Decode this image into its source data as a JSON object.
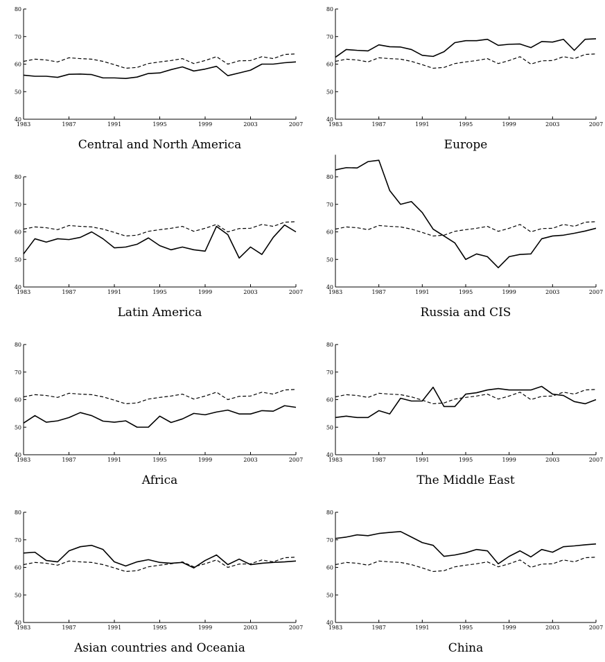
{
  "chart_data": [
    {
      "type": "line",
      "title": "Central and North America",
      "x": [
        1983,
        1984,
        1985,
        1986,
        1987,
        1988,
        1989,
        1990,
        1991,
        1992,
        1993,
        1994,
        1995,
        1996,
        1997,
        1998,
        1999,
        2000,
        2001,
        2002,
        2003,
        2004,
        2005,
        2006,
        2007
      ],
      "series": [
        {
          "color": "#000000",
          "dash": "solid",
          "values": [
            56,
            55.6,
            55.6,
            55.2,
            56.3,
            56.4,
            56.2,
            55,
            55,
            54.8,
            55.3,
            56.6,
            56.8,
            58,
            59,
            57.5,
            58.2,
            59.2,
            55.8,
            56.8,
            57.8,
            60,
            60,
            60.5,
            60.8
          ]
        },
        {
          "color": "#000000",
          "dash": "dashed",
          "values": [
            61,
            61.8,
            61.5,
            60.8,
            62.3,
            62,
            61.8,
            61,
            59.8,
            58.5,
            58.8,
            60.2,
            60.8,
            61.3,
            62,
            60.2,
            61.3,
            62.7,
            60,
            61.2,
            61.3,
            62.7,
            62,
            63.5,
            63.7
          ]
        }
      ],
      "xlim": [
        1983,
        2007
      ],
      "xticks": [
        1983,
        1987,
        1991,
        1995,
        1999,
        2003,
        2007
      ],
      "ylim": [
        40,
        80
      ],
      "yticks": [
        40,
        50,
        60,
        70,
        80
      ]
    },
    {
      "type": "line",
      "title": "Europe",
      "x": [
        1983,
        1984,
        1985,
        1986,
        1987,
        1988,
        1989,
        1990,
        1991,
        1992,
        1993,
        1994,
        1995,
        1996,
        1997,
        1998,
        1999,
        2000,
        2001,
        2002,
        2003,
        2004,
        2005,
        2006,
        2007
      ],
      "series": [
        {
          "color": "#000000",
          "dash": "solid",
          "values": [
            62.5,
            65.3,
            65,
            64.8,
            67,
            66.3,
            66.2,
            65.3,
            63.2,
            62.8,
            64.5,
            67.8,
            68.5,
            68.5,
            69,
            66.8,
            67.2,
            67.3,
            66,
            68.2,
            68,
            69,
            65,
            69,
            69.2
          ]
        },
        {
          "color": "#000000",
          "dash": "dashed",
          "values": [
            61,
            61.8,
            61.5,
            60.8,
            62.3,
            62,
            61.8,
            61,
            59.8,
            58.5,
            58.8,
            60.2,
            60.8,
            61.3,
            62,
            60.2,
            61.3,
            62.7,
            60,
            61.2,
            61.3,
            62.7,
            62,
            63.5,
            63.7
          ]
        }
      ],
      "xlim": [
        1983,
        2007
      ],
      "xticks": [
        1983,
        1987,
        1991,
        1995,
        1999,
        2003,
        2007
      ],
      "ylim": [
        40,
        80
      ],
      "yticks": [
        40,
        50,
        60,
        70,
        80
      ]
    },
    {
      "type": "line",
      "title": "Latin America",
      "x": [
        1983,
        1984,
        1985,
        1986,
        1987,
        1988,
        1989,
        1990,
        1991,
        1992,
        1993,
        1994,
        1995,
        1996,
        1997,
        1998,
        1999,
        2000,
        2001,
        2002,
        2003,
        2004,
        2005,
        2006,
        2007
      ],
      "series": [
        {
          "color": "#000000",
          "dash": "solid",
          "values": [
            52,
            57.5,
            56.3,
            57.5,
            57.2,
            58,
            60,
            57.5,
            54.2,
            54.5,
            55.5,
            57.8,
            55,
            53.5,
            54.5,
            53.5,
            53,
            62,
            59,
            50.5,
            54.5,
            51.8,
            58,
            62.5,
            60
          ]
        },
        {
          "color": "#000000",
          "dash": "dashed",
          "values": [
            61,
            61.8,
            61.5,
            60.8,
            62.3,
            62,
            61.8,
            61,
            59.8,
            58.5,
            58.8,
            60.2,
            60.8,
            61.3,
            62,
            60.2,
            61.3,
            62.7,
            60,
            61.2,
            61.3,
            62.7,
            62,
            63.5,
            63.7
          ]
        }
      ],
      "xlim": [
        1983,
        2007
      ],
      "xticks": [
        1983,
        1987,
        1991,
        1995,
        1999,
        2003,
        2007
      ],
      "ylim": [
        40,
        80
      ],
      "yticks": [
        40,
        50,
        60,
        70,
        80
      ]
    },
    {
      "type": "line",
      "title": "Russia and CIS",
      "x": [
        1983,
        1984,
        1985,
        1986,
        1987,
        1988,
        1989,
        1990,
        1991,
        1992,
        1993,
        1994,
        1995,
        1996,
        1997,
        1998,
        1999,
        2000,
        2001,
        2002,
        2003,
        2004,
        2005,
        2006,
        2007
      ],
      "series": [
        {
          "color": "#000000",
          "dash": "solid",
          "values": [
            82.5,
            83.3,
            83.2,
            85.5,
            86,
            75,
            70,
            71,
            67,
            61,
            58.5,
            56,
            50,
            52,
            51,
            47,
            51,
            51.8,
            52,
            57.5,
            58.5,
            58.8,
            59.5,
            60.3,
            61.3
          ]
        },
        {
          "color": "#000000",
          "dash": "dashed",
          "values": [
            61,
            61.8,
            61.5,
            60.8,
            62.3,
            62,
            61.8,
            61,
            59.8,
            58.5,
            58.8,
            60.2,
            60.8,
            61.3,
            62,
            60.2,
            61.3,
            62.7,
            60,
            61.2,
            61.3,
            62.7,
            62,
            63.5,
            63.7
          ]
        }
      ],
      "xlim": [
        1983,
        2007
      ],
      "xticks": [
        1983,
        1987,
        1991,
        1995,
        1999,
        2003,
        2007
      ],
      "ylim": [
        40,
        88
      ],
      "yticks": [
        40,
        50,
        60,
        70,
        80
      ]
    },
    {
      "type": "line",
      "title": "Africa",
      "x": [
        1983,
        1984,
        1985,
        1986,
        1987,
        1988,
        1989,
        1990,
        1991,
        1992,
        1993,
        1994,
        1995,
        1996,
        1997,
        1998,
        1999,
        2000,
        2001,
        2002,
        2003,
        2004,
        2005,
        2006,
        2007
      ],
      "series": [
        {
          "color": "#000000",
          "dash": "solid",
          "values": [
            51.5,
            54.2,
            51.8,
            52.3,
            53.5,
            55.3,
            54.2,
            52.2,
            51.8,
            52.3,
            50,
            50,
            54,
            51.7,
            53,
            55,
            54.5,
            55.5,
            56.2,
            54.8,
            54.8,
            56,
            55.8,
            57.8,
            57.2
          ]
        },
        {
          "color": "#000000",
          "dash": "dashed",
          "values": [
            61,
            61.8,
            61.5,
            60.8,
            62.3,
            62,
            61.8,
            61,
            59.8,
            58.5,
            58.8,
            60.2,
            60.8,
            61.3,
            62,
            60.2,
            61.3,
            62.7,
            60,
            61.2,
            61.3,
            62.7,
            62,
            63.5,
            63.7
          ]
        }
      ],
      "xlim": [
        1983,
        2007
      ],
      "xticks": [
        1983,
        1987,
        1991,
        1995,
        1999,
        2003,
        2007
      ],
      "ylim": [
        40,
        80
      ],
      "yticks": [
        40,
        50,
        60,
        70,
        80
      ]
    },
    {
      "type": "line",
      "title": "The Middle East",
      "x": [
        1983,
        1984,
        1985,
        1986,
        1987,
        1988,
        1989,
        1990,
        1991,
        1992,
        1993,
        1994,
        1995,
        1996,
        1997,
        1998,
        1999,
        2000,
        2001,
        2002,
        2003,
        2004,
        2005,
        2006,
        2007
      ],
      "series": [
        {
          "color": "#000000",
          "dash": "solid",
          "values": [
            53.5,
            54,
            53.5,
            53.5,
            56,
            54.8,
            60.5,
            59.5,
            59.5,
            64.5,
            57.5,
            57.5,
            62,
            62.5,
            63.5,
            64,
            63.5,
            63.5,
            63.5,
            64.8,
            62,
            61.5,
            59.3,
            58.5,
            60
          ]
        },
        {
          "color": "#000000",
          "dash": "dashed",
          "values": [
            61,
            61.8,
            61.5,
            60.8,
            62.3,
            62,
            61.8,
            61,
            59.8,
            58.5,
            58.8,
            60.2,
            60.8,
            61.3,
            62,
            60.2,
            61.3,
            62.7,
            60,
            61.2,
            61.3,
            62.7,
            62,
            63.5,
            63.7
          ]
        }
      ],
      "xlim": [
        1983,
        2007
      ],
      "xticks": [
        1983,
        1987,
        1991,
        1995,
        1999,
        2003,
        2007
      ],
      "ylim": [
        40,
        80
      ],
      "yticks": [
        40,
        50,
        60,
        70,
        80
      ]
    },
    {
      "type": "line",
      "title": "Asian countries and Oceania",
      "x": [
        1983,
        1984,
        1985,
        1986,
        1987,
        1988,
        1989,
        1990,
        1991,
        1992,
        1993,
        1994,
        1995,
        1996,
        1997,
        1998,
        1999,
        2000,
        2001,
        2002,
        2003,
        2004,
        2005,
        2006,
        2007
      ],
      "series": [
        {
          "color": "#000000",
          "dash": "solid",
          "values": [
            65.2,
            65.5,
            62.5,
            62,
            66,
            67.5,
            68,
            66.5,
            62,
            60.5,
            62,
            62.8,
            61.8,
            61.5,
            61.8,
            59.8,
            62.5,
            64.5,
            61,
            63,
            61,
            61.5,
            61.8,
            62,
            62.3
          ]
        },
        {
          "color": "#000000",
          "dash": "dashed",
          "values": [
            61,
            61.8,
            61.5,
            60.8,
            62.3,
            62,
            61.8,
            61,
            59.8,
            58.5,
            58.8,
            60.2,
            60.8,
            61.3,
            62,
            60.2,
            61.3,
            62.7,
            60,
            61.2,
            61.3,
            62.7,
            62,
            63.5,
            63.7
          ]
        }
      ],
      "xlim": [
        1983,
        2007
      ],
      "xticks": [
        1983,
        1987,
        1991,
        1995,
        1999,
        2003,
        2007
      ],
      "ylim": [
        40,
        80
      ],
      "yticks": [
        40,
        50,
        60,
        70,
        80
      ]
    },
    {
      "type": "line",
      "title": "China",
      "x": [
        1983,
        1984,
        1985,
        1986,
        1987,
        1988,
        1989,
        1990,
        1991,
        1992,
        1993,
        1994,
        1995,
        1996,
        1997,
        1998,
        1999,
        2000,
        2001,
        2002,
        2003,
        2004,
        2005,
        2006,
        2007
      ],
      "series": [
        {
          "color": "#000000",
          "dash": "solid",
          "values": [
            70.5,
            71,
            71.8,
            71.5,
            72.3,
            72.7,
            73,
            71,
            69,
            68,
            64,
            64.5,
            65.3,
            66.5,
            66,
            61.3,
            64,
            66,
            63.8,
            66.5,
            65.5,
            67.5,
            67.8,
            68.2,
            68.5
          ]
        },
        {
          "color": "#000000",
          "dash": "dashed",
          "values": [
            61,
            61.8,
            61.5,
            60.8,
            62.3,
            62,
            61.8,
            61,
            59.8,
            58.5,
            58.8,
            60.2,
            60.8,
            61.3,
            62,
            60.2,
            61.3,
            62.7,
            60,
            61.2,
            61.3,
            62.7,
            62,
            63.5,
            63.7
          ]
        }
      ],
      "xlim": [
        1983,
        2007
      ],
      "xticks": [
        1983,
        1987,
        1991,
        1995,
        1999,
        2003,
        2007
      ],
      "ylim": [
        40,
        80
      ],
      "yticks": [
        40,
        50,
        60,
        70,
        80
      ]
    }
  ]
}
